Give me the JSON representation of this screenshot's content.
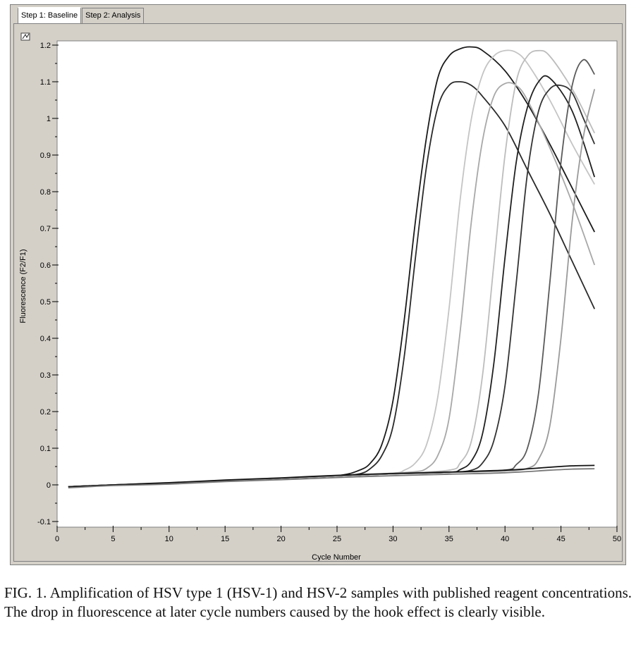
{
  "tabs": [
    {
      "label": "Step 1: Baseline",
      "active": true
    },
    {
      "label": "Step 2: Analysis",
      "active": false
    }
  ],
  "caption": "FIG. 1. Amplification of HSV type 1 (HSV-1) and HSV-2 samples with published reagent concentrations. The drop in fluorescence at later cycle numbers caused by the hook effect is clearly visible.",
  "chart_data": {
    "type": "line",
    "title": "",
    "xlabel": "Cycle Number",
    "ylabel": "Fluorescence (F2/F1)",
    "xlim": [
      0,
      50
    ],
    "ylim": [
      -0.1,
      1.2
    ],
    "xticks": [
      0,
      5,
      10,
      15,
      20,
      25,
      30,
      35,
      40,
      45,
      50
    ],
    "xtick_labels": [
      "0",
      "5",
      "10",
      "15",
      "20",
      "25",
      "30",
      "35",
      "40",
      "45",
      "50"
    ],
    "yticks": [
      -0.1,
      0,
      0.1,
      0.2,
      0.3,
      0.4,
      0.5,
      0.6,
      0.7,
      0.8,
      0.9,
      1,
      1.1,
      1.2
    ],
    "ytick_labels": [
      "-0.1",
      "0",
      "0.1",
      "0.2",
      "0.3",
      "0.4",
      "0.5",
      "0.6",
      "0.7",
      "0.8",
      "0.9",
      "1",
      "1.1",
      "1.2"
    ],
    "grid": false,
    "series": [
      {
        "color": "#1a1a1a",
        "x": [
          1,
          5,
          10,
          15,
          20,
          25,
          27,
          28,
          29,
          30,
          31,
          32,
          33,
          34,
          35,
          36,
          37,
          38,
          40,
          42,
          44,
          46,
          48
        ],
        "y": [
          -0.005,
          0,
          0.005,
          0.012,
          0.018,
          0.025,
          0.04,
          0.06,
          0.11,
          0.23,
          0.45,
          0.72,
          0.95,
          1.11,
          1.17,
          1.19,
          1.195,
          1.185,
          1.13,
          1.04,
          0.93,
          0.81,
          0.69
        ]
      },
      {
        "color": "#2a2a2a",
        "x": [
          1,
          5,
          10,
          15,
          20,
          25,
          27,
          28,
          29,
          30,
          31,
          32,
          33,
          34,
          35,
          36,
          37,
          38,
          40,
          42,
          44,
          46,
          48
        ],
        "y": [
          -0.005,
          0,
          0.005,
          0.012,
          0.018,
          0.025,
          0.03,
          0.045,
          0.08,
          0.16,
          0.35,
          0.62,
          0.87,
          1.03,
          1.09,
          1.1,
          1.09,
          1.06,
          0.98,
          0.86,
          0.74,
          0.61,
          0.48
        ]
      },
      {
        "color": "#c4c4c4",
        "x": [
          1,
          10,
          20,
          25,
          30,
          31,
          32,
          33,
          34,
          35,
          36,
          37,
          38,
          39,
          40,
          41,
          42,
          44,
          46,
          48
        ],
        "y": [
          -0.005,
          0.005,
          0.018,
          0.024,
          0.032,
          0.04,
          0.06,
          0.11,
          0.24,
          0.48,
          0.78,
          1.0,
          1.12,
          1.17,
          1.185,
          1.18,
          1.15,
          1.05,
          0.93,
          0.82
        ]
      },
      {
        "color": "#a8a8a8",
        "x": [
          1,
          10,
          20,
          25,
          30,
          32,
          33,
          34,
          35,
          36,
          37,
          38,
          39,
          40,
          41,
          42,
          44,
          46,
          48
        ],
        "y": [
          -0.005,
          0.005,
          0.018,
          0.024,
          0.032,
          0.036,
          0.045,
          0.08,
          0.18,
          0.42,
          0.72,
          0.94,
          1.06,
          1.095,
          1.09,
          1.05,
          0.92,
          0.77,
          0.6
        ]
      },
      {
        "color": "#bcbcbc",
        "x": [
          1,
          10,
          20,
          25,
          30,
          35,
          36,
          37,
          38,
          39,
          40,
          41,
          42,
          43,
          44,
          46,
          48
        ],
        "y": [
          -0.005,
          0.005,
          0.018,
          0.024,
          0.03,
          0.04,
          0.06,
          0.12,
          0.3,
          0.6,
          0.9,
          1.1,
          1.17,
          1.185,
          1.17,
          1.08,
          0.96
        ]
      },
      {
        "color": "#202020",
        "x": [
          1,
          10,
          20,
          25,
          30,
          35,
          36,
          37,
          38,
          39,
          40,
          41,
          42,
          43,
          44,
          46,
          48
        ],
        "y": [
          -0.005,
          0.005,
          0.018,
          0.024,
          0.03,
          0.034,
          0.042,
          0.065,
          0.14,
          0.33,
          0.62,
          0.88,
          1.03,
          1.1,
          1.11,
          1.02,
          0.84
        ]
      },
      {
        "color": "#333333",
        "x": [
          1,
          10,
          20,
          25,
          30,
          35,
          37,
          38,
          39,
          40,
          41,
          42,
          43,
          44,
          45,
          46,
          47,
          48
        ],
        "y": [
          -0.005,
          0.005,
          0.018,
          0.024,
          0.03,
          0.034,
          0.04,
          0.06,
          0.12,
          0.27,
          0.55,
          0.85,
          1.02,
          1.08,
          1.09,
          1.07,
          1.0,
          0.93
        ]
      },
      {
        "color": "#5a5a5a",
        "x": [
          1,
          10,
          20,
          25,
          30,
          35,
          40,
          41,
          42,
          43,
          44,
          45,
          46,
          47,
          48
        ],
        "y": [
          -0.005,
          0.005,
          0.018,
          0.024,
          0.03,
          0.034,
          0.04,
          0.055,
          0.1,
          0.25,
          0.55,
          0.88,
          1.09,
          1.16,
          1.12
        ]
      },
      {
        "color": "#9a9a9a",
        "x": [
          1,
          10,
          20,
          25,
          30,
          35,
          40,
          42,
          43,
          44,
          45,
          46,
          47,
          48
        ],
        "y": [
          -0.005,
          0.005,
          0.018,
          0.024,
          0.03,
          0.034,
          0.038,
          0.045,
          0.07,
          0.16,
          0.4,
          0.72,
          0.95,
          1.08
        ]
      },
      {
        "color": "#111111",
        "x": [
          1,
          5,
          10,
          15,
          20,
          25,
          30,
          35,
          40,
          44,
          46,
          48
        ],
        "y": [
          -0.005,
          0,
          0.006,
          0.013,
          0.019,
          0.026,
          0.031,
          0.035,
          0.04,
          0.048,
          0.052,
          0.053
        ]
      },
      {
        "color": "#777777",
        "x": [
          1,
          5,
          10,
          15,
          20,
          25,
          30,
          35,
          40,
          44,
          46,
          48
        ],
        "y": [
          -0.008,
          -0.002,
          0.002,
          0.009,
          0.014,
          0.02,
          0.025,
          0.029,
          0.033,
          0.04,
          0.043,
          0.044
        ]
      }
    ]
  }
}
